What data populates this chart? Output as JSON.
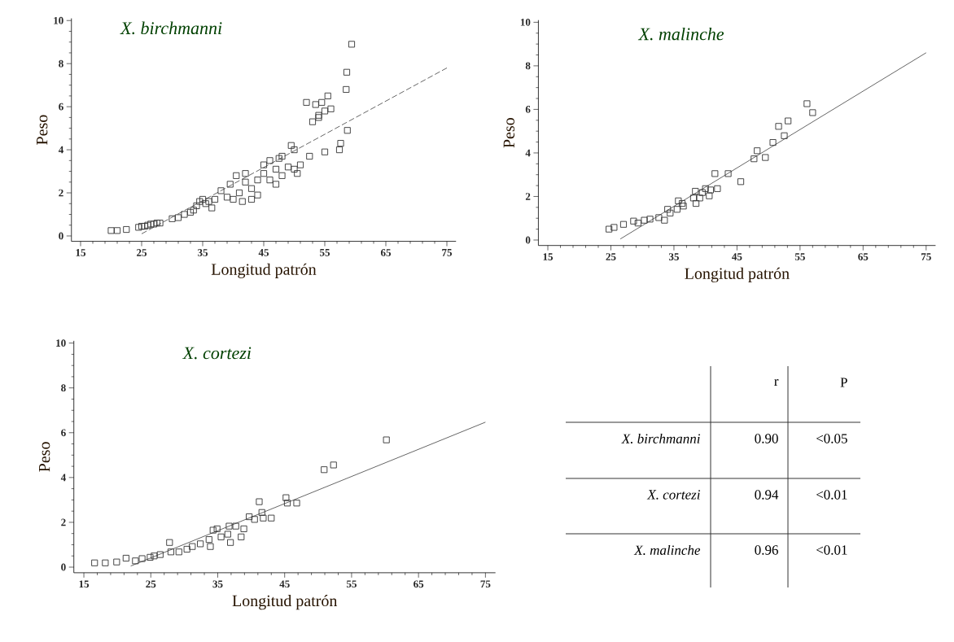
{
  "chart_data": [
    {
      "type": "scatter",
      "title": "X. birchmanni",
      "xlabel": "Longitud patrón",
      "ylabel": "Peso",
      "xlim": [
        13.5,
        76.5
      ],
      "ylim": [
        -0.25,
        10.1
      ],
      "xticks": [
        15,
        25,
        35,
        45,
        55,
        65,
        75
      ],
      "yticks": [
        0,
        2,
        4,
        6,
        8,
        10
      ],
      "marker": "square",
      "series": [
        {
          "color": "#333333",
          "x": [
            20,
            21,
            22.5,
            24.5,
            25,
            25.5,
            26,
            26.5,
            27,
            27.5,
            28,
            30,
            31,
            32,
            33,
            33.5,
            34,
            34.5,
            35,
            35.5,
            36,
            36.5,
            37,
            38,
            39,
            39.5,
            40,
            40.5,
            41,
            41.5,
            42,
            42,
            43,
            43,
            44,
            44,
            45,
            45,
            46,
            46,
            47,
            47,
            47.5,
            48,
            48,
            49,
            49.5,
            50,
            50,
            50.5,
            51,
            52.5,
            52,
            53,
            53.5,
            54,
            54,
            54.5,
            55,
            55,
            55.5,
            56,
            57.4,
            57.6,
            58.5,
            58.6,
            58.7,
            59.4
          ],
          "values": [
            0.25,
            0.25,
            0.3,
            0.4,
            0.45,
            0.45,
            0.5,
            0.55,
            0.55,
            0.6,
            0.6,
            0.8,
            0.85,
            1.0,
            1.1,
            1.2,
            1.4,
            1.6,
            1.7,
            1.5,
            1.6,
            1.3,
            1.7,
            2.1,
            1.8,
            2.4,
            1.7,
            2.8,
            2.0,
            1.6,
            2.5,
            2.9,
            2.2,
            1.7,
            2.6,
            1.9,
            2.9,
            3.3,
            3.5,
            2.6,
            3.1,
            2.4,
            3.6,
            2.8,
            3.7,
            3.2,
            4.2,
            4.0,
            3.1,
            2.9,
            3.3,
            3.7,
            6.2,
            5.3,
            6.1,
            5.6,
            5.5,
            6.2,
            5.8,
            3.9,
            6.5,
            5.9,
            4.0,
            4.3,
            6.8,
            7.6,
            4.9,
            8.9
          ]
        },
        {
          "type": "line",
          "color": "#555555",
          "marker": "none",
          "line_style": "dashed",
          "x": [
            25,
            75
          ],
          "values": [
            0.1,
            7.8
          ]
        }
      ]
    },
    {
      "type": "scatter",
      "title": "X. malinche",
      "xlabel": "Longitud patrón",
      "ylabel": "Peso",
      "xlim": [
        13.5,
        76.5
      ],
      "ylim": [
        -0.25,
        10.1
      ],
      "xticks": [
        15,
        25,
        35,
        45,
        55,
        65,
        75
      ],
      "yticks": [
        0,
        2,
        4,
        6,
        8,
        10
      ],
      "marker": "square",
      "series": [
        {
          "color": "#333333",
          "x": [
            24.7,
            25.5,
            27.0,
            28.6,
            29.3,
            30.3,
            31.2,
            32.6,
            33.5,
            34.0,
            34.4,
            35.5,
            35.7,
            36.3,
            36.5,
            38.1,
            38.4,
            38.5,
            39.1,
            39.5,
            40.0,
            40.6,
            40.8,
            41.5,
            41.9,
            43.6,
            45.6,
            47.7,
            48.2,
            49.5,
            50.7,
            51.6,
            52.5,
            53.1,
            56.1,
            57.0
          ],
          "values": [
            0.5,
            0.58,
            0.72,
            0.87,
            0.78,
            0.91,
            0.96,
            1.03,
            0.91,
            1.41,
            1.24,
            1.41,
            1.8,
            1.68,
            1.56,
            1.93,
            2.24,
            1.68,
            1.93,
            2.18,
            2.36,
            2.03,
            2.3,
            3.05,
            2.36,
            3.05,
            2.68,
            3.73,
            4.1,
            3.79,
            4.48,
            5.22,
            4.79,
            5.47,
            6.26,
            5.85
          ]
        },
        {
          "type": "line",
          "color": "#555555",
          "marker": "none",
          "line_style": "solid",
          "x": [
            26.5,
            75
          ],
          "values": [
            0.05,
            8.6
          ]
        }
      ]
    },
    {
      "type": "scatter",
      "title": "X. cortezi",
      "xlabel": "Longitud patrón",
      "ylabel": "Peso",
      "xlim": [
        13.5,
        76.5
      ],
      "ylim": [
        -0.25,
        10.1
      ],
      "xticks": [
        15,
        25,
        35,
        45,
        55,
        65,
        75
      ],
      "yticks": [
        0,
        2,
        4,
        6,
        8,
        10
      ],
      "marker": "square",
      "series": [
        {
          "color": "#333333",
          "x": [
            16.6,
            18.2,
            19.9,
            21.3,
            22.7,
            23.7,
            24.9,
            25.5,
            26.4,
            27.8,
            28.0,
            29.2,
            30.4,
            31.2,
            32.4,
            33.7,
            33.9,
            34.3,
            34.9,
            35.5,
            36.5,
            36.7,
            36.9,
            37.7,
            38.5,
            38.9,
            39.7,
            40.5,
            41.2,
            41.6,
            41.8,
            43.0,
            45.2,
            45.4,
            46.8,
            50.9,
            52.3,
            60.2
          ],
          "values": [
            0.19,
            0.19,
            0.23,
            0.4,
            0.28,
            0.38,
            0.44,
            0.5,
            0.56,
            1.1,
            0.68,
            0.68,
            0.8,
            0.92,
            1.04,
            1.23,
            0.92,
            1.65,
            1.71,
            1.35,
            1.47,
            1.83,
            1.1,
            1.83,
            1.35,
            1.71,
            2.25,
            2.13,
            2.92,
            2.44,
            2.19,
            2.19,
            3.1,
            2.86,
            2.86,
            4.35,
            4.56,
            5.68
          ]
        },
        {
          "type": "line",
          "color": "#555555",
          "marker": "none",
          "line_style": "solid",
          "x": [
            22,
            75
          ],
          "values": [
            0.05,
            6.47
          ]
        }
      ]
    },
    {
      "type": "other",
      "categories": [
        "X. birchmanni",
        "X. cortezi",
        "X. malinche"
      ],
      "series": [
        {
          "name": "r",
          "values": [
            0.9,
            0.94,
            0.96
          ],
          "value_labels": [
            "0.90",
            "0.94",
            "0.96"
          ]
        },
        {
          "name": "P",
          "values": [
            0.05,
            0.01,
            0.01
          ],
          "value_labels": [
            "<0.05",
            "<0.01",
            "<0.01"
          ]
        }
      ]
    }
  ]
}
